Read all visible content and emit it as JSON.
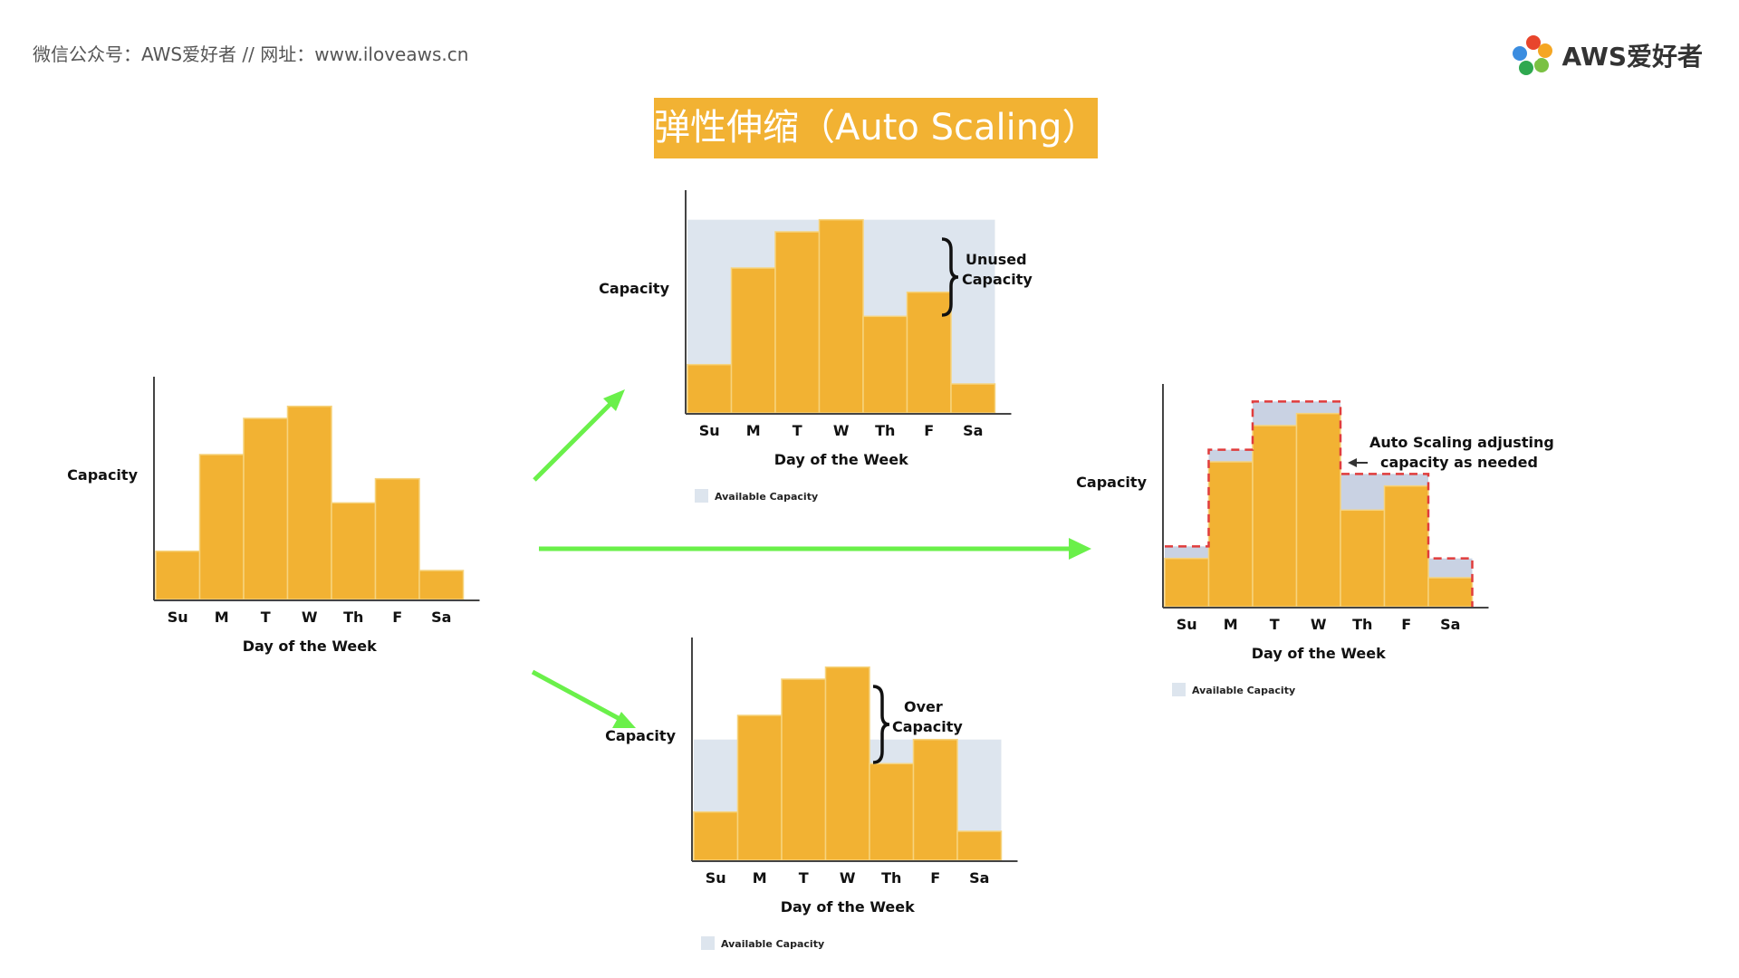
{
  "header": {
    "text": "微信公众号：AWS爱好者  //  网址：www.iloveaws.cn"
  },
  "logo": {
    "text": "AWS爱好者"
  },
  "title": "弹性伸缩（Auto Scaling）",
  "colors": {
    "bar": "#f2b233",
    "bar_stroke": "#f6d37d",
    "available": "#dde5ee",
    "arrow": "#6af04a",
    "dashed": "#e03c3c",
    "title_bg": "#f2b233"
  },
  "chart_data": [
    {
      "type": "bar",
      "id": "demand",
      "categories": [
        "Su",
        "M",
        "T",
        "W",
        "Th",
        "F",
        "Sa"
      ],
      "values": [
        20,
        60,
        75,
        80,
        40,
        50,
        12
      ],
      "ylim": [
        0,
        90
      ],
      "xlabel": "Day of the Week",
      "ylabel": "Capacity"
    },
    {
      "type": "bar",
      "id": "fixed-high",
      "categories": [
        "Su",
        "M",
        "T",
        "W",
        "Th",
        "F",
        "Sa"
      ],
      "values": [
        20,
        60,
        75,
        80,
        40,
        50,
        12
      ],
      "available": [
        80,
        80,
        80,
        80,
        80,
        80,
        80
      ],
      "ylim": [
        0,
        90
      ],
      "xlabel": "Day of the Week",
      "ylabel": "Capacity",
      "annotation": [
        "Unused",
        "Capacity"
      ],
      "legend": "Available Capacity"
    },
    {
      "type": "bar",
      "id": "fixed-low",
      "categories": [
        "Su",
        "M",
        "T",
        "W",
        "Th",
        "F",
        "Sa"
      ],
      "values": [
        20,
        60,
        75,
        80,
        40,
        50,
        12
      ],
      "available": [
        50,
        50,
        50,
        50,
        50,
        50,
        50
      ],
      "ylim": [
        0,
        90
      ],
      "xlabel": "Day of the Week",
      "ylabel": "Capacity",
      "annotation": [
        "Over",
        "Capacity"
      ],
      "legend": "Available Capacity"
    },
    {
      "type": "bar",
      "id": "auto-scaling",
      "categories": [
        "Su",
        "M",
        "T",
        "W",
        "Th",
        "F",
        "Sa"
      ],
      "values": [
        20,
        60,
        75,
        80,
        40,
        50,
        12
      ],
      "available": [
        25,
        65,
        85,
        85,
        55,
        55,
        20
      ],
      "ylim": [
        0,
        90
      ],
      "xlabel": "Day of the Week",
      "ylabel": "Capacity",
      "annotation": [
        "Auto Scaling adjusting",
        "capacity as needed"
      ],
      "legend": "Available Capacity"
    }
  ]
}
